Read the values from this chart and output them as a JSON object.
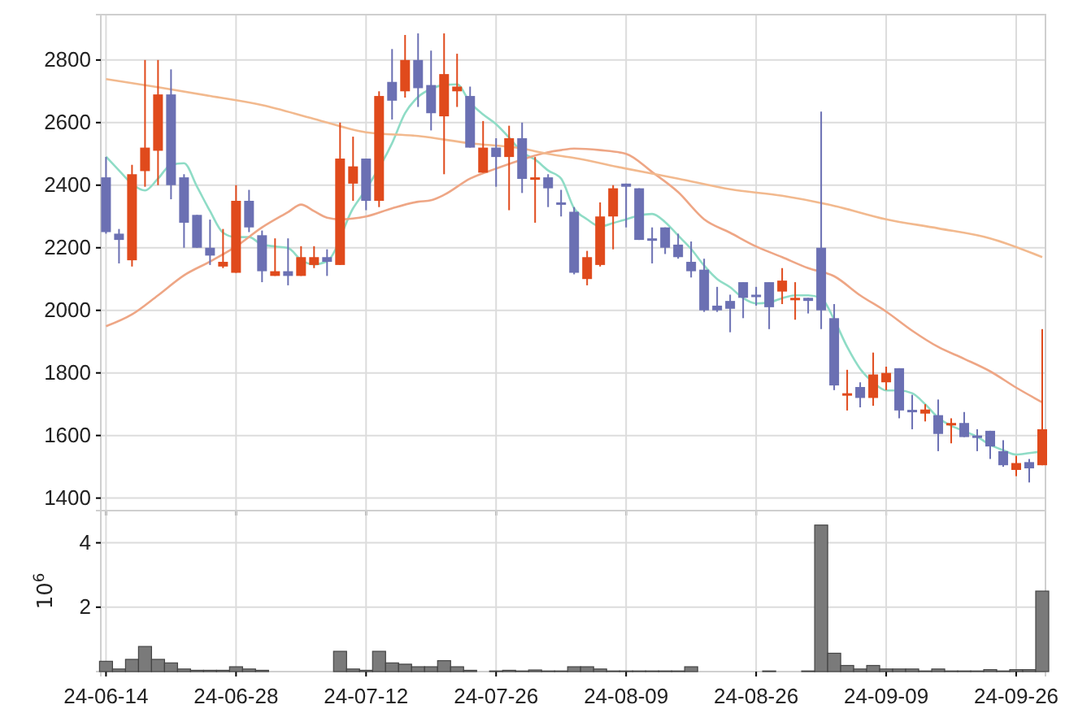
{
  "chart_data": [
    {
      "type": "candlestick",
      "categories": [
        null,
        null,
        null,
        null,
        null,
        null,
        null,
        null,
        null,
        null,
        null,
        null,
        null,
        null,
        null,
        null,
        null,
        null,
        null,
        null,
        null,
        null,
        null,
        null,
        null,
        null,
        null,
        null,
        null,
        null,
        null,
        null,
        null,
        null,
        null,
        null,
        null,
        null,
        null,
        null,
        null,
        null,
        null,
        null,
        null,
        null,
        null,
        null,
        null,
        null,
        null,
        null,
        null,
        null,
        null,
        null,
        null,
        null,
        null,
        null,
        null,
        null,
        null,
        null,
        null,
        null,
        null,
        null,
        null,
        null,
        null,
        null,
        null
      ],
      "ohlc": [
        [
          2425,
          2490,
          2245,
          2250
        ],
        [
          2245,
          2260,
          2150,
          2225
        ],
        [
          2160,
          2465,
          2140,
          2435
        ],
        [
          2445,
          2800,
          2395,
          2520
        ],
        [
          2510,
          2800,
          2400,
          2690
        ],
        [
          2690,
          2770,
          2355,
          2400
        ],
        [
          2425,
          2435,
          2200,
          2280
        ],
        [
          2305,
          2305,
          2200,
          2200
        ],
        [
          2200,
          2290,
          2145,
          2175
        ],
        [
          2140,
          2260,
          2135,
          2155
        ],
        [
          2120,
          2400,
          2120,
          2350
        ],
        [
          2350,
          2385,
          2250,
          2265
        ],
        [
          2240,
          2255,
          2090,
          2125
        ],
        [
          2110,
          2230,
          2110,
          2125
        ],
        [
          2125,
          2230,
          2080,
          2110
        ],
        [
          2110,
          2205,
          2110,
          2170
        ],
        [
          2145,
          2205,
          2135,
          2170
        ],
        [
          2170,
          2195,
          2110,
          2155
        ],
        [
          2145,
          2600,
          2145,
          2485
        ],
        [
          2405,
          2555,
          2350,
          2460
        ],
        [
          2485,
          2485,
          2320,
          2350
        ],
        [
          2350,
          2700,
          2330,
          2685
        ],
        [
          2730,
          2835,
          2610,
          2670
        ],
        [
          2700,
          2880,
          2680,
          2800
        ],
        [
          2800,
          2885,
          2650,
          2710
        ],
        [
          2720,
          2830,
          2575,
          2630
        ],
        [
          2620,
          2885,
          2435,
          2755
        ],
        [
          2700,
          2820,
          2650,
          2715
        ],
        [
          2685,
          2715,
          2520,
          2520
        ],
        [
          2440,
          2605,
          2440,
          2520
        ],
        [
          2520,
          2550,
          2395,
          2490
        ],
        [
          2490,
          2590,
          2320,
          2550
        ],
        [
          2550,
          2600,
          2375,
          2420
        ],
        [
          2420,
          2490,
          2280,
          2425
        ],
        [
          2425,
          2435,
          2330,
          2390
        ],
        [
          2345,
          2385,
          2300,
          2340
        ],
        [
          2315,
          2330,
          2115,
          2120
        ],
        [
          2100,
          2190,
          2080,
          2170
        ],
        [
          2145,
          2345,
          2140,
          2300
        ],
        [
          2300,
          2400,
          2195,
          2390
        ],
        [
          2405,
          2405,
          2265,
          2395
        ],
        [
          2390,
          2390,
          2225,
          2225
        ],
        [
          2230,
          2265,
          2150,
          2228
        ],
        [
          2265,
          2265,
          2180,
          2200
        ],
        [
          2210,
          2245,
          2165,
          2170
        ],
        [
          2155,
          2220,
          2105,
          2125
        ],
        [
          2130,
          2165,
          1995,
          2000
        ],
        [
          2015,
          2075,
          1995,
          2000
        ],
        [
          2030,
          2050,
          1930,
          2005
        ],
        [
          2090,
          2090,
          1975,
          2040
        ],
        [
          2050,
          2075,
          2015,
          2045
        ],
        [
          2090,
          2090,
          1940,
          2010
        ],
        [
          2060,
          2135,
          2020,
          2095
        ],
        [
          2035,
          2090,
          1970,
          2040
        ],
        [
          2040,
          2040,
          1990,
          2030
        ],
        [
          2200,
          2635,
          1940,
          2000
        ],
        [
          1975,
          2020,
          1745,
          1760
        ],
        [
          1730,
          1810,
          1680,
          1735
        ],
        [
          1755,
          1770,
          1690,
          1720
        ],
        [
          1720,
          1865,
          1695,
          1795
        ],
        [
          1770,
          1820,
          1745,
          1800
        ],
        [
          1815,
          1815,
          1655,
          1680
        ],
        [
          1682,
          1730,
          1620,
          1678
        ],
        [
          1670,
          1700,
          1645,
          1683
        ],
        [
          1665,
          1715,
          1550,
          1605
        ],
        [
          1635,
          1655,
          1575,
          1640
        ],
        [
          1640,
          1675,
          1595,
          1595
        ],
        [
          1600,
          1620,
          1550,
          1597
        ],
        [
          1615,
          1615,
          1525,
          1565
        ],
        [
          1550,
          1585,
          1500,
          1505
        ],
        [
          1490,
          1535,
          1470,
          1512
        ],
        [
          1515,
          1525,
          1450,
          1495
        ],
        [
          1505,
          1940,
          1505,
          1620
        ]
      ],
      "colors": [
        "#6b70b3",
        "#6b70b3",
        "#e04a1c",
        "#e04a1c",
        "#e04a1c",
        "#6b70b3",
        "#6b70b3",
        "#6b70b3",
        "#6b70b3",
        "#e04a1c",
        "#e04a1c",
        "#6b70b3",
        "#6b70b3",
        "#e04a1c",
        "#6b70b3",
        "#e04a1c",
        "#e04a1c",
        "#6b70b3",
        "#e04a1c",
        "#e04a1c",
        "#6b70b3",
        "#e04a1c",
        "#6b70b3",
        "#e04a1c",
        "#6b70b3",
        "#6b70b3",
        "#e04a1c",
        "#e04a1c",
        "#6b70b3",
        "#e04a1c",
        "#6b70b3",
        "#e04a1c",
        "#6b70b3",
        "#e04a1c",
        "#6b70b3",
        "#6b70b3",
        "#6b70b3",
        "#e04a1c",
        "#e04a1c",
        "#e04a1c",
        "#6b70b3",
        "#6b70b3",
        "#6b70b3",
        "#6b70b3",
        "#6b70b3",
        "#6b70b3",
        "#6b70b3",
        "#6b70b3",
        "#6b70b3",
        "#6b70b3",
        "#6b70b3",
        "#6b70b3",
        "#e04a1c",
        "#e04a1c",
        "#6b70b3",
        "#6b70b3",
        "#6b70b3",
        "#e04a1c",
        "#6b70b3",
        "#e04a1c",
        "#e04a1c",
        "#6b70b3",
        "#6b70b3",
        "#e04a1c",
        "#6b70b3",
        "#e04a1c",
        "#6b70b3",
        "#6b70b3",
        "#6b70b3",
        "#6b70b3",
        "#e04a1c",
        "#6b70b3",
        "#e04a1c"
      ],
      "series": [
        {
          "type": "line",
          "color": "#8fdcc6",
          "values": [
            2491,
            2447,
            2404,
            2383,
            2421,
            2465,
            2470,
            2395,
            2317,
            2248,
            2234,
            2234,
            2210,
            2204,
            2199,
            2161,
            2147,
            2157,
            null,
            2326,
            2387,
            null,
            2534,
            2630,
            2682,
            2708,
            2720,
            2722,
            2664,
            2626,
            2595,
            2552,
            2505,
            2482,
            2447,
            2421,
            2326,
            2291,
            2268,
            2279,
            2291,
            2303,
            2308,
            2282,
            2239,
            2196,
            2143,
            2100,
            2074,
            2039,
            2022,
            2025,
            2039,
            2048,
            2048,
            2039,
            1970,
            1883,
            1813,
            1770,
            1744,
            1744,
            1735,
            1700,
            1657,
            1631,
            1614,
            1596,
            1570,
            1553,
            1539,
            1544,
            1549
          ]
        },
        {
          "type": "line",
          "color": "#eea685",
          "values": [
            1949,
            null,
            1987,
            null,
            2048,
            null,
            2112,
            null,
            2156,
            null,
            2204,
            null,
            2265,
            null,
            2314,
            2338,
            2317,
            2296,
            2291,
            null,
            2300,
            null,
            2326,
            null,
            2347,
            2352,
            2369,
            null,
            2421,
            null,
            2453,
            null,
            2482,
            null,
            2505,
            2512,
            2517,
            null,
            2512,
            null,
            2500,
            null,
            2442,
            null,
            2378,
            null,
            2291,
            null,
            2248,
            null,
            2204,
            null,
            2170,
            null,
            2135,
            null,
            2109,
            null,
            2048,
            null,
            1996,
            null,
            1935,
            null,
            1883,
            null,
            1845,
            null,
            1805,
            null,
            1753,
            null,
            1706
          ]
        },
        {
          "type": "line",
          "color": "#f2b98e",
          "values": [
            2739,
            null,
            null,
            null,
            2713,
            null,
            null,
            null,
            2685,
            null,
            null,
            null,
            2656,
            null,
            null,
            null,
            2612,
            null,
            null,
            null,
            2569,
            null,
            null,
            null,
            2557,
            null,
            null,
            null,
            2534,
            null,
            null,
            null,
            2517,
            null,
            2500,
            null,
            2487,
            null,
            null,
            null,
            2453,
            null,
            null,
            null,
            2421,
            null,
            null,
            null,
            2387,
            null,
            null,
            null,
            2366,
            null,
            null,
            null,
            2334,
            null,
            null,
            null,
            2291,
            null,
            null,
            null,
            2262,
            null,
            null,
            null,
            2230,
            null,
            null,
            null,
            2170
          ]
        }
      ],
      "ylim": [
        1360,
        2945
      ],
      "yticks": [
        1400,
        1600,
        1800,
        2000,
        2200,
        2400,
        2600,
        2800
      ],
      "grid": true,
      "tick_labels": "y"
    },
    {
      "type": "bar",
      "categories": [
        "24-06-14",
        null,
        null,
        null,
        null,
        null,
        null,
        null,
        null,
        null,
        "24-06-28",
        null,
        null,
        null,
        null,
        null,
        null,
        null,
        null,
        null,
        "24-07-12",
        null,
        null,
        null,
        null,
        null,
        null,
        null,
        null,
        null,
        "24-07-26",
        null,
        null,
        null,
        null,
        null,
        null,
        null,
        null,
        null,
        "24-08-09",
        null,
        null,
        null,
        null,
        null,
        null,
        null,
        null,
        null,
        "24-08-26",
        null,
        null,
        null,
        null,
        null,
        null,
        null,
        null,
        null,
        "24-09-09",
        null,
        null,
        null,
        null,
        null,
        null,
        null,
        null,
        null,
        "24-09-26",
        null,
        null
      ],
      "values": [
        0.32,
        0.08,
        0.38,
        0.78,
        0.38,
        0.27,
        0.08,
        0.04,
        0.04,
        0.04,
        0.15,
        0.08,
        0.04,
        0,
        0,
        0,
        0,
        0,
        0.63,
        0.08,
        0.04,
        0.63,
        0.27,
        0.23,
        0.15,
        0.15,
        0.34,
        0.15,
        0.04,
        0,
        0.02,
        0.04,
        0.02,
        0.05,
        0.02,
        0.02,
        0.15,
        0.15,
        0.08,
        0.02,
        0.02,
        0.02,
        0.02,
        0.02,
        0.02,
        0.15,
        0,
        0,
        0,
        0,
        0,
        0.02,
        0,
        0,
        0.02,
        4.55,
        0.57,
        0.19,
        0.08,
        0.19,
        0.08,
        0.08,
        0.08,
        0.02,
        0.08,
        0.02,
        0.02,
        0.02,
        0.06,
        0.02,
        0.06,
        0.06,
        2.5
      ],
      "color": "#7a7a7a",
      "ylabel": "10$^{6}$",
      "ylim": [
        0,
        5
      ],
      "yticks": [
        2,
        4
      ],
      "grid": true
    }
  ]
}
